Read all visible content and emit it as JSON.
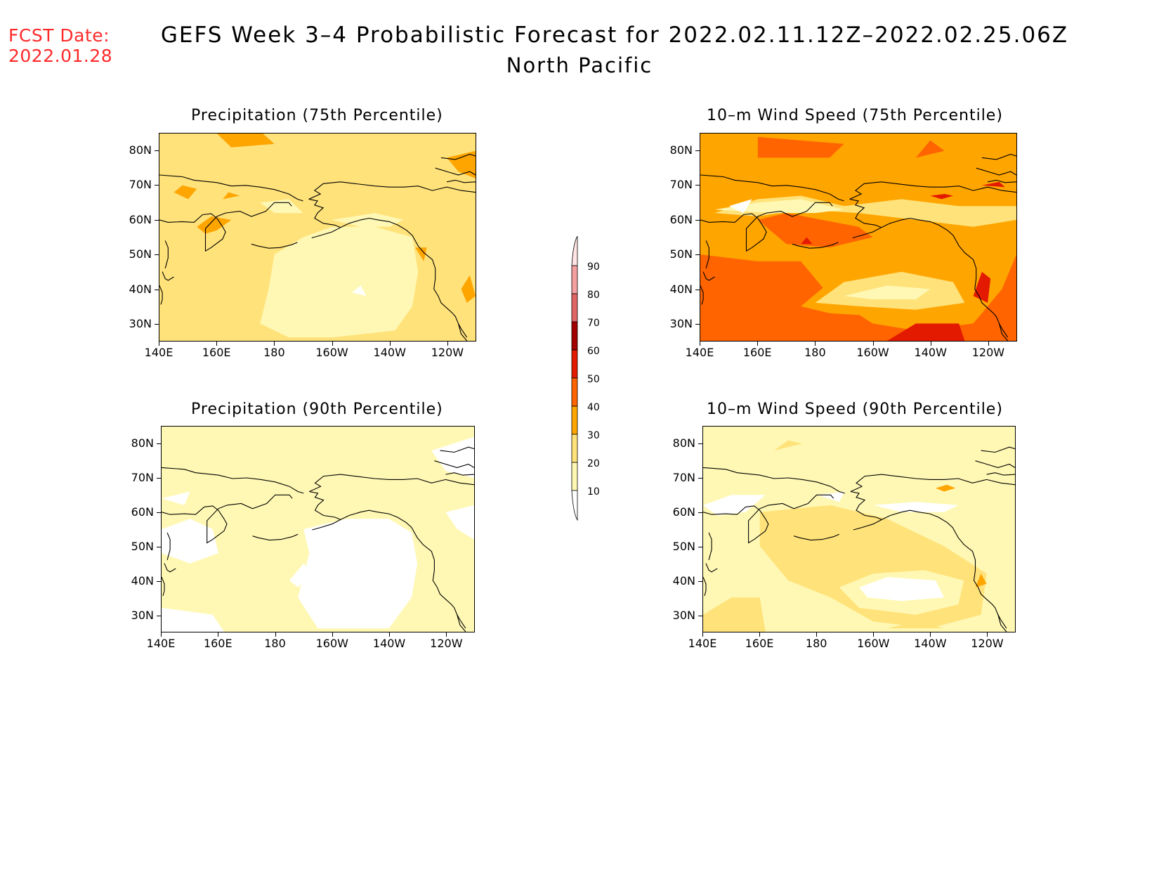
{
  "header": {
    "fcst_label": "FCST Date:",
    "fcst_date": "2022.01.28",
    "title": "GEFS Week 3–4 Probabilistic Forecast for 2022.02.11.12Z–2022.02.25.06Z",
    "subtitle": "North Pacific"
  },
  "panels": [
    {
      "title": "Precipitation (75th Percentile)",
      "dominant_category": "20-30"
    },
    {
      "title": "10–m Wind Speed (75th Percentile)",
      "dominant_category": "30-40"
    },
    {
      "title": "Precipitation (90th Percentile)",
      "dominant_category": "10-20"
    },
    {
      "title": "10–m Wind Speed (90th Percentile)",
      "dominant_category": "10-20"
    }
  ],
  "axes": {
    "lat_labels": [
      "80N",
      "70N",
      "60N",
      "50N",
      "40N",
      "30N"
    ],
    "lon_labels": [
      "140E",
      "160E",
      "180",
      "160W",
      "140W",
      "120W"
    ]
  },
  "colorbar": {
    "labels": [
      "90",
      "80",
      "70",
      "60",
      "50",
      "40",
      "30",
      "20",
      "10"
    ],
    "colors": {
      "below_10": "#ffffff",
      "10-20": "#fff8b4",
      "20-30": "#ffe27a",
      "30-40": "#ffa500",
      "40-50": "#ff6400",
      "50-60": "#e31a00",
      "60-70": "#a50000",
      "70-80": "#e06464",
      "80-90": "#f4a0a0",
      "above_90": "#ffe4e4"
    }
  }
}
